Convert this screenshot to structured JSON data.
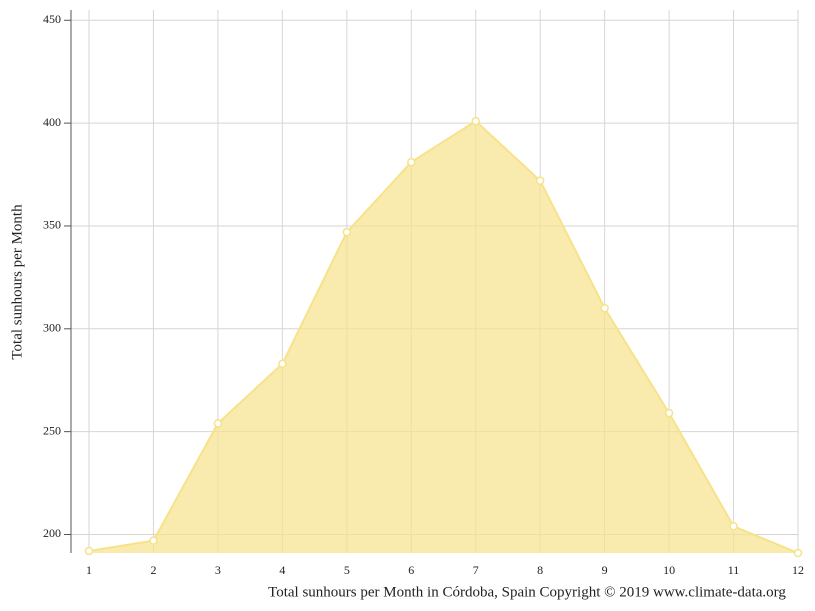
{
  "chart_data": {
    "type": "area",
    "title": "Total sunhours per Month in Córdoba, Spain Copyright © 2019 www.climate-data.org",
    "y_label": "Total sunhours per Month",
    "x": [
      1,
      2,
      3,
      4,
      5,
      6,
      7,
      8,
      9,
      10,
      11,
      12
    ],
    "values": [
      192,
      197,
      254,
      283,
      347,
      381,
      401,
      372,
      310,
      259,
      204,
      191
    ],
    "color": "#f7e28a",
    "xlim": [
      1,
      12
    ],
    "xticks": [
      1,
      2,
      3,
      4,
      5,
      6,
      7,
      8,
      9,
      10,
      11,
      12
    ],
    "ylim": [
      191,
      455
    ],
    "yticks": [
      200,
      250,
      300,
      350,
      400,
      450
    ],
    "grid": true
  }
}
